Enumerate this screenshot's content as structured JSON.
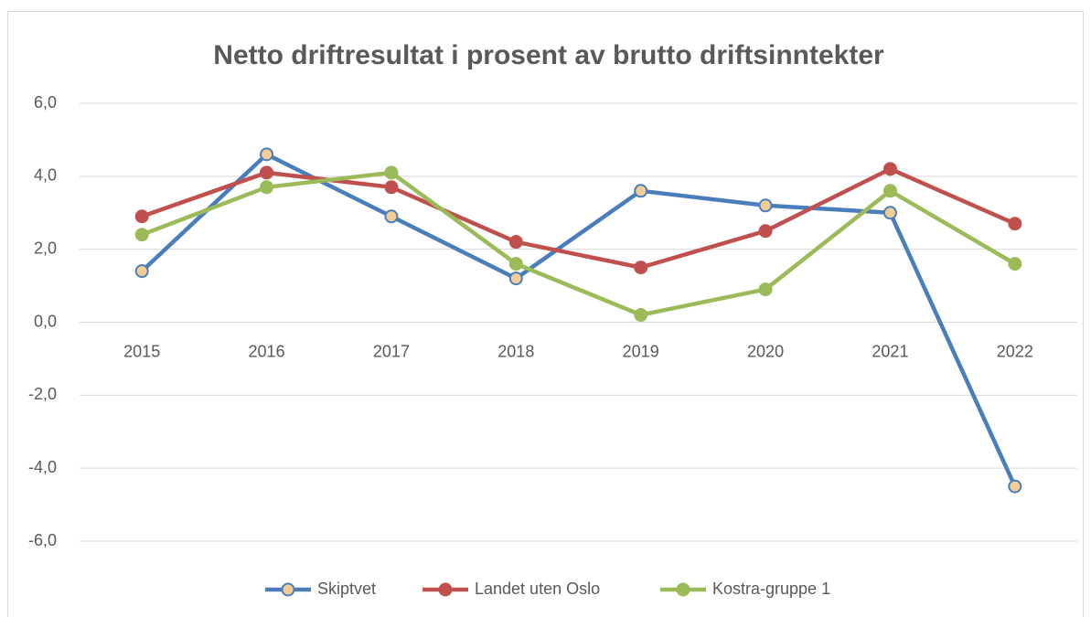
{
  "chart_data": {
    "type": "line",
    "title": "Netto driftresultat i prosent av brutto driftsinntekter",
    "categories": [
      "2015",
      "2016",
      "2017",
      "2018",
      "2019",
      "2020",
      "2021",
      "2022"
    ],
    "series": [
      {
        "name": "Skiptvet",
        "color": "#4a7ebb",
        "marker_fill": "#f2cd96",
        "values": [
          1.4,
          4.6,
          2.9,
          1.2,
          3.6,
          3.2,
          3.0,
          -4.5
        ]
      },
      {
        "name": "Landet uten Oslo",
        "color": "#c0504d",
        "marker_fill": "#c0504d",
        "values": [
          2.9,
          4.1,
          3.7,
          2.2,
          1.5,
          2.5,
          4.2,
          2.7
        ]
      },
      {
        "name": "Kostra-gruppe 1",
        "color": "#9bbb59",
        "marker_fill": "#9bbb59",
        "values": [
          2.4,
          3.7,
          4.1,
          1.6,
          0.2,
          0.9,
          3.6,
          1.6
        ]
      }
    ],
    "ylim": [
      -6,
      6
    ],
    "yticks": [
      {
        "value": -6,
        "label": "-6,0"
      },
      {
        "value": -4,
        "label": "-4,0"
      },
      {
        "value": -2,
        "label": "-2,0"
      },
      {
        "value": 0,
        "label": "0,0"
      },
      {
        "value": 2,
        "label": "2,0"
      },
      {
        "value": 4,
        "label": "4,0"
      },
      {
        "value": 6,
        "label": "6,0"
      }
    ],
    "grid": true,
    "legend": "bottom"
  }
}
